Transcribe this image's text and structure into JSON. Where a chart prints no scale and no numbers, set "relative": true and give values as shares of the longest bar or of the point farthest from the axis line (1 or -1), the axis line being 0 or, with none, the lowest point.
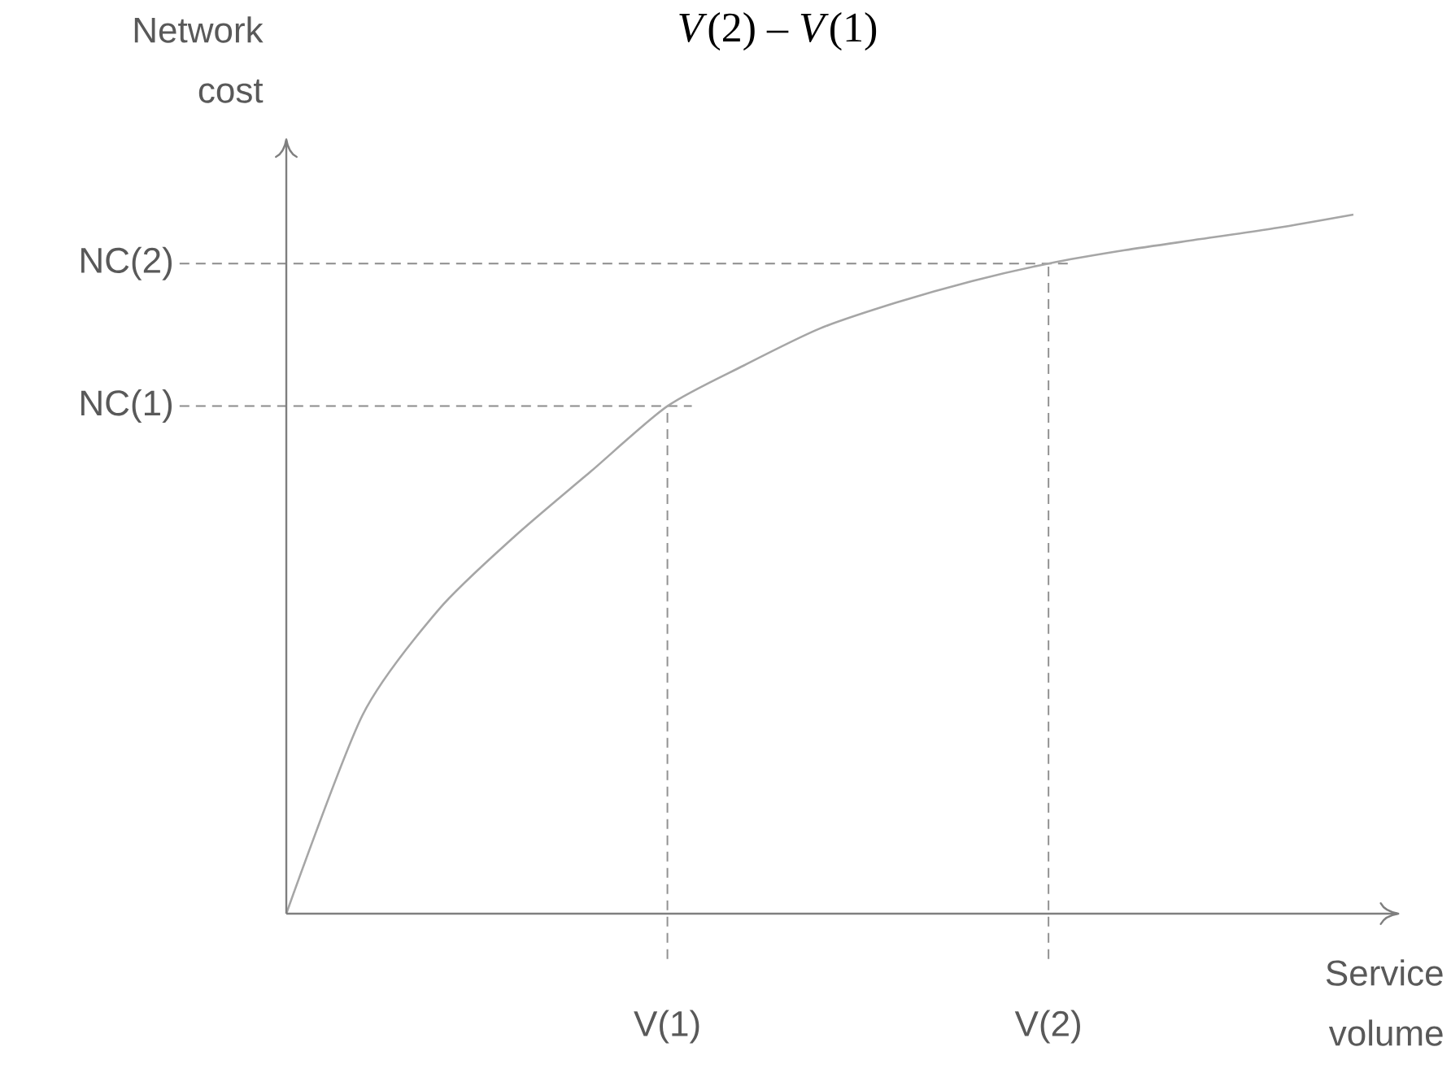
{
  "chart_data": {
    "type": "line",
    "relative": true,
    "title": "*V*(2) – *V*(1)",
    "xlabel": "Service volume",
    "ylabel": "Network cost",
    "categories": [
      null,
      null,
      null,
      null,
      null,
      "V(1)",
      null,
      null,
      null,
      null,
      "V(2)",
      null,
      null,
      null,
      null
    ],
    "series": [
      {
        "color": "#a6a6a6",
        "values": [
          0,
          0.284,
          0.435,
          0.54,
          0.633,
          0.726,
          0.784,
          0.837,
          0.874,
          0.905,
          0.93,
          0.949,
          0.965,
          0.981,
          1.0
        ]
      }
    ],
    "ref_lines": [
      {
        "axis": "y",
        "value": 0.726,
        "label": "NC(1)",
        "line_style": "dashed",
        "color": "#8c8c8c"
      },
      {
        "axis": "y",
        "value": 0.93,
        "label": "NC(2)",
        "line_style": "dashed",
        "color": "#8c8c8c"
      }
    ]
  }
}
